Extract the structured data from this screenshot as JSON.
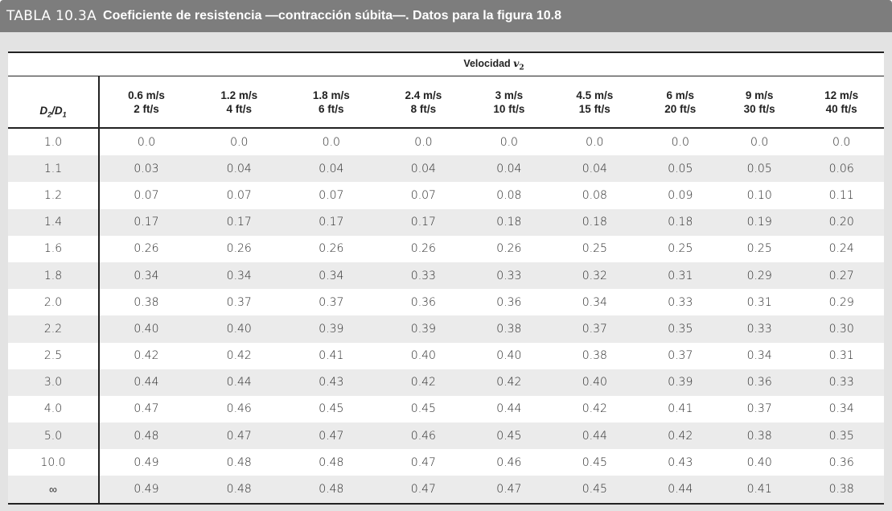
{
  "title": {
    "label": "TABLA 10.3A",
    "caption": "Coeficiente de resistencia —contracción súbita—. Datos para la figura 10.8"
  },
  "table": {
    "group_header_prefix": "Velocidad",
    "group_header_var": "v",
    "group_header_sub": "2",
    "row_header": {
      "a": "D",
      "a_sub": "2",
      "sep": "/",
      "b": "D",
      "b_sub": "1"
    },
    "columns": [
      {
        "si": "0.6 m/s",
        "us": "2 ft/s"
      },
      {
        "si": "1.2 m/s",
        "us": "4 ft/s"
      },
      {
        "si": "1.8 m/s",
        "us": "6 ft/s"
      },
      {
        "si": "2.4 m/s",
        "us": "8 ft/s"
      },
      {
        "si": "3 m/s",
        "us": "10 ft/s"
      },
      {
        "si": "4.5 m/s",
        "us": "15 ft/s"
      },
      {
        "si": "6 m/s",
        "us": "20 ft/s"
      },
      {
        "si": "9 m/s",
        "us": "30 ft/s"
      },
      {
        "si": "12 m/s",
        "us": "40 ft/s"
      }
    ],
    "rows": [
      {
        "d": "1.0",
        "v": [
          "0.0",
          "0.0",
          "0.0",
          "0.0",
          "0.0",
          "0.0",
          "0.0",
          "0.0",
          "0.0"
        ]
      },
      {
        "d": "1.1",
        "v": [
          "0.03",
          "0.04",
          "0.04",
          "0.04",
          "0.04",
          "0.04",
          "0.05",
          "0.05",
          "0.06"
        ]
      },
      {
        "d": "1.2",
        "v": [
          "0.07",
          "0.07",
          "0.07",
          "0.07",
          "0.08",
          "0.08",
          "0.09",
          "0.10",
          "0.11"
        ]
      },
      {
        "d": "1.4",
        "v": [
          "0.17",
          "0.17",
          "0.17",
          "0.17",
          "0.18",
          "0.18",
          "0.18",
          "0.19",
          "0.20"
        ]
      },
      {
        "d": "1.6",
        "v": [
          "0.26",
          "0.26",
          "0.26",
          "0.26",
          "0.26",
          "0.25",
          "0.25",
          "0.25",
          "0.24"
        ]
      },
      {
        "d": "1.8",
        "v": [
          "0.34",
          "0.34",
          "0.34",
          "0.33",
          "0.33",
          "0.32",
          "0.31",
          "0.29",
          "0.27"
        ]
      },
      {
        "d": "2.0",
        "v": [
          "0.38",
          "0.37",
          "0.37",
          "0.36",
          "0.36",
          "0.34",
          "0.33",
          "0.31",
          "0.29"
        ]
      },
      {
        "d": "2.2",
        "v": [
          "0.40",
          "0.40",
          "0.39",
          "0.39",
          "0.38",
          "0.37",
          "0.35",
          "0.33",
          "0.30"
        ]
      },
      {
        "d": "2.5",
        "v": [
          "0.42",
          "0.42",
          "0.41",
          "0.40",
          "0.40",
          "0.38",
          "0.37",
          "0.34",
          "0.31"
        ]
      },
      {
        "d": "3.0",
        "v": [
          "0.44",
          "0.44",
          "0.43",
          "0.42",
          "0.42",
          "0.40",
          "0.39",
          "0.36",
          "0.33"
        ]
      },
      {
        "d": "4.0",
        "v": [
          "0.47",
          "0.46",
          "0.45",
          "0.45",
          "0.44",
          "0.42",
          "0.41",
          "0.37",
          "0.34"
        ]
      },
      {
        "d": "5.0",
        "v": [
          "0.48",
          "0.47",
          "0.47",
          "0.46",
          "0.45",
          "0.44",
          "0.42",
          "0.38",
          "0.35"
        ]
      },
      {
        "d": "10.0",
        "v": [
          "0.49",
          "0.48",
          "0.48",
          "0.47",
          "0.46",
          "0.45",
          "0.43",
          "0.40",
          "0.36"
        ]
      },
      {
        "d": "∞",
        "v": [
          "0.49",
          "0.48",
          "0.48",
          "0.47",
          "0.47",
          "0.45",
          "0.44",
          "0.41",
          "0.38"
        ]
      }
    ]
  }
}
